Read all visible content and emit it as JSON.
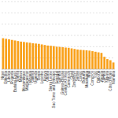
{
  "chart_data": {
    "type": "bar",
    "categories": [
      "Niger",
      "Ethiopia",
      "Liberia",
      "Rwanda",
      "Burkina Faso",
      "Eritrea",
      "Malawi",
      "Mozambique",
      "Madagascar",
      "Tanzania",
      "Guinea",
      "Uganda",
      "Benin",
      "Lesotho",
      "Kenya",
      "Ghana",
      "Sierra Leone",
      "Sao Tome and Principe",
      "Senegal",
      "Gambia",
      "Guinea-Bissau",
      "Central Afr Rep",
      "Cameroon",
      "Chad",
      "Zimbabwe",
      "Sudan",
      "Congo",
      "Burundi",
      "Mauritania",
      "Mali",
      "Comoros",
      "Togo",
      "Djibouti",
      "Angola",
      "Zambia",
      "Nigeria",
      "Côte d'Ivoire",
      "Namibia"
    ],
    "values": [
      2.75,
      2.7,
      2.65,
      2.6,
      2.55,
      2.5,
      2.45,
      2.42,
      2.38,
      2.35,
      2.3,
      2.28,
      2.25,
      2.2,
      2.15,
      2.1,
      2.08,
      2.05,
      2.0,
      1.98,
      1.95,
      1.92,
      1.9,
      1.85,
      1.8,
      1.75,
      1.72,
      1.7,
      1.68,
      1.65,
      1.6,
      1.55,
      1.5,
      1.45,
      1.1,
      0.9,
      0.8,
      0.6
    ],
    "color": "#f9a11b",
    "ylim": [
      0,
      6
    ],
    "yticks": [
      0,
      1,
      2,
      3,
      4,
      5,
      6
    ],
    "grid": true,
    "tick_labels": "x"
  }
}
